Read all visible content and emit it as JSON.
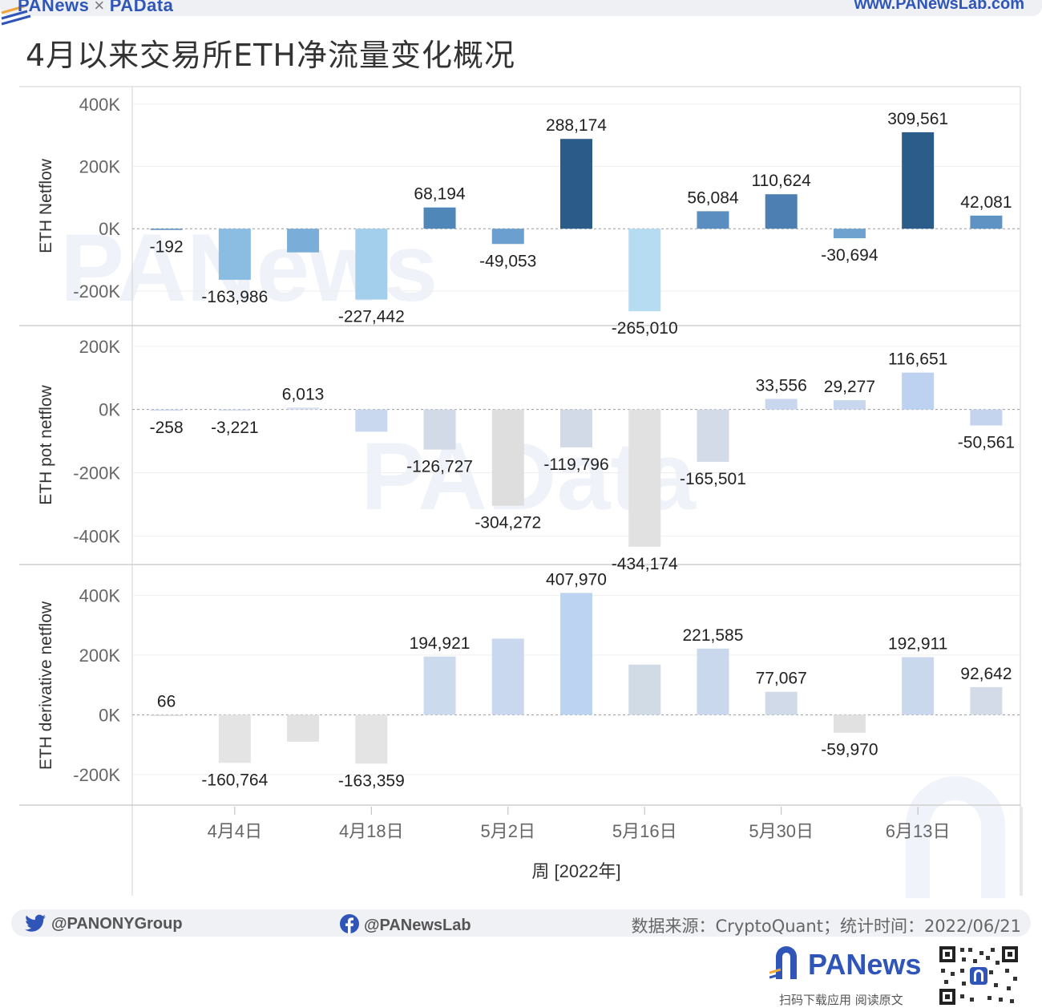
{
  "header": {
    "brand_left": "PANews",
    "brand_sep": "×",
    "brand_right": "PAData",
    "site": "www.PANewsLab.com"
  },
  "title": "4月以来交易所ETH净流量变化概况",
  "chart_data": {
    "type": "bar",
    "x_ticks": [
      "4月4日",
      "4月18日",
      "5月2日",
      "5月16日",
      "5月30日",
      "6月13日"
    ],
    "x_tick_index": [
      1,
      3,
      5,
      7,
      9,
      11
    ],
    "xlabel": "周 [2022年]",
    "weeks": 13,
    "panels": [
      {
        "ylabel": "ETH Netflow",
        "ylim": [
          -280000,
          420000
        ],
        "yticks": [
          400000,
          200000,
          0,
          -200000
        ],
        "ytick_labels": [
          "400K",
          "200K",
          "0K",
          "-200K"
        ],
        "values": [
          -192,
          -163986,
          -76000,
          -227442,
          68194,
          -49053,
          288174,
          -265010,
          56084,
          110624,
          -30694,
          309561,
          42081
        ],
        "labels": [
          "-192",
          "-163,986",
          "",
          "-227,442",
          "68,194",
          "-49,053",
          "288,174",
          "-265,010",
          "56,084",
          "110,624",
          "-30,694",
          "309,561",
          "42,081"
        ],
        "colors": [
          "#5b8fc0",
          "#8bbde3",
          "#7aaed8",
          "#a4cfec",
          "#5087b9",
          "#6b9fcf",
          "#2b5b88",
          "#b6dcf1",
          "#5a8dc0",
          "#4d7fb3",
          "#70a2d0",
          "#2c5c89",
          "#5e93c4"
        ]
      },
      {
        "ylabel": "ETH pot netflow",
        "ylim": [
          -460000,
          230000
        ],
        "yticks": [
          200000,
          0,
          -200000,
          -400000
        ],
        "ytick_labels": [
          "200K",
          "0K",
          "-200K",
          "-400K"
        ],
        "values": [
          -258,
          -3221,
          6013,
          -70000,
          -126727,
          -304272,
          -119796,
          -434174,
          -165501,
          33556,
          29277,
          116651,
          -50561
        ],
        "labels": [
          "-258",
          "-3,221",
          "6,013",
          "",
          "-126,727",
          "-304,272",
          "-119,796",
          "-434,174",
          "-165,501",
          "33,556",
          "29,277",
          "116,651",
          "-50,561"
        ],
        "colors": [
          "#cdd9ec",
          "#d3dded",
          "#d6e0ef",
          "#c9d8ee",
          "#d1dae6",
          "#dedede",
          "#d1dae6",
          "#e1e1e1",
          "#d2dbe7",
          "#c8d7ee",
          "#c8d7ee",
          "#bcd2f0",
          "#c4d4ee"
        ]
      },
      {
        "ylabel": "ETH derivative netflow",
        "ylim": [
          -270000,
          460000
        ],
        "yticks": [
          400000,
          200000,
          0,
          -200000
        ],
        "ytick_labels": [
          "400K",
          "200K",
          "0K",
          "-200K"
        ],
        "values": [
          66,
          -160764,
          -90000,
          -163359,
          194921,
          255000,
          407970,
          168000,
          221585,
          77067,
          -59970,
          192911,
          92642
        ],
        "labels": [
          "66",
          "-160,764",
          "",
          "-163,359",
          "194,921",
          "",
          "407,970",
          "",
          "221,585",
          "77,067",
          "-59,970",
          "192,911",
          "92,642"
        ],
        "colors": [
          "#dddddd",
          "#e4e4e4",
          "#e2e2e2",
          "#e4e4e4",
          "#ccdaee",
          "#c9d8ee",
          "#bdd3f2",
          "#d1dbe6",
          "#cad8ee",
          "#d0dae8",
          "#e1e1e1",
          "#cad8ee",
          "#d2dbe7"
        ]
      }
    ]
  },
  "footer": {
    "twitter": "@PANONYGroup",
    "facebook": "@PANewsLab",
    "source": "数据来源：CryptoQuant；统计时间：2022/06/21"
  },
  "logo": {
    "text": "PANews",
    "sub": "扫码下载应用 阅读原文"
  }
}
